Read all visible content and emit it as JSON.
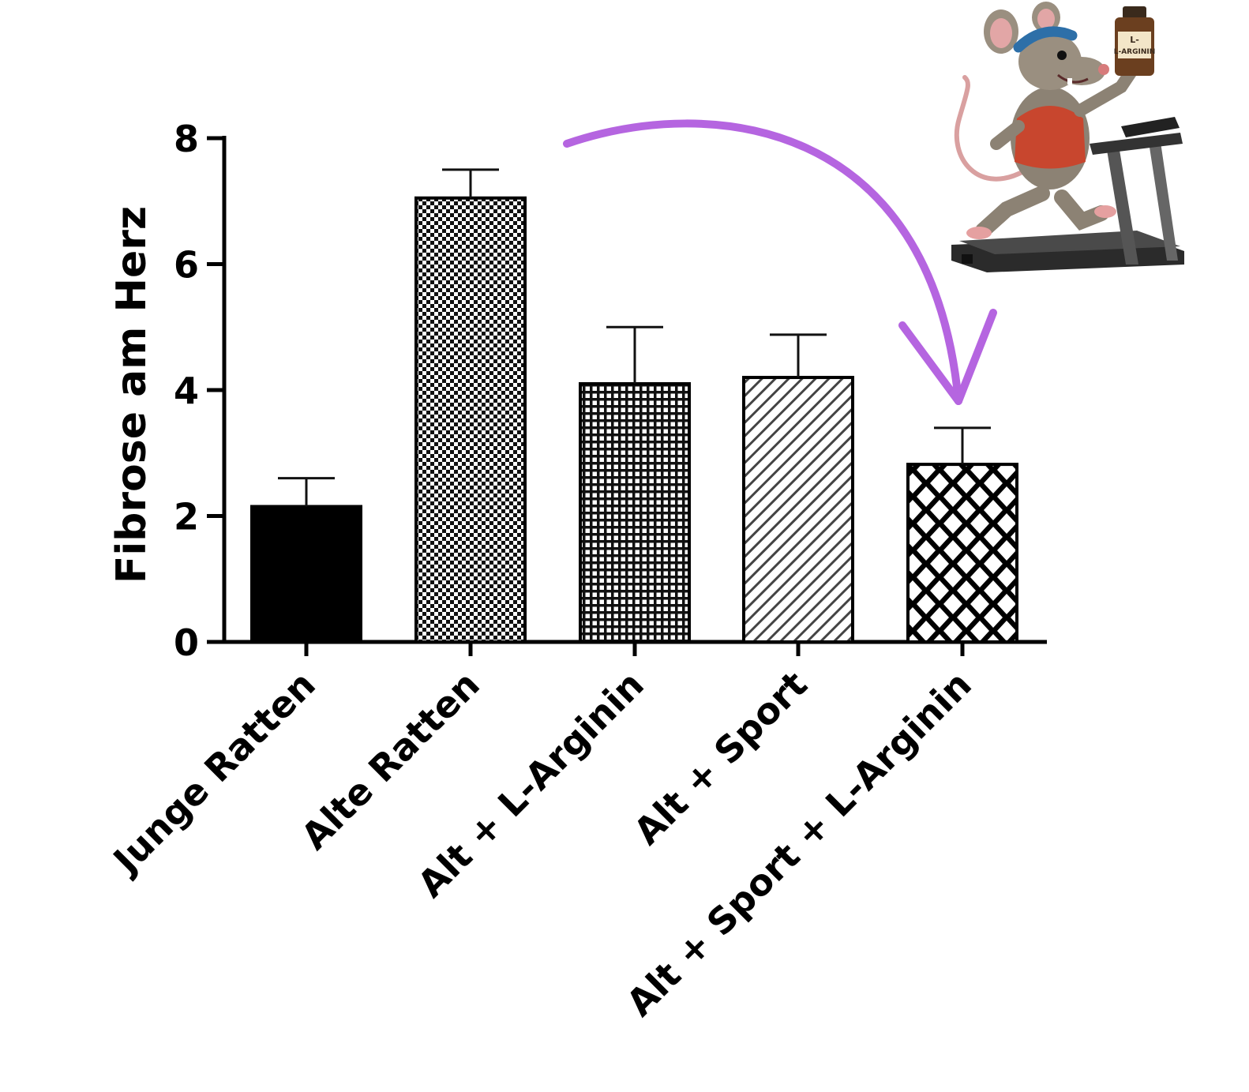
{
  "chart_data": {
    "type": "bar",
    "ylabel": "Fibrose am Herz",
    "ylim": [
      0,
      8
    ],
    "yticks": [
      0,
      2,
      4,
      6,
      8
    ],
    "grid": false,
    "categories": [
      "Junge Ratten",
      "Alte Ratten",
      "Alt + L-Arginin",
      "Alt + Sport",
      "Alt + Sport + L-Arginin"
    ],
    "values": [
      2.15,
      7.05,
      4.1,
      4.2,
      2.82
    ],
    "error_bars": [
      0.45,
      0.45,
      0.9,
      0.68,
      0.58
    ],
    "bar_patterns": [
      "solid-black",
      "fine-checker",
      "dense-grid",
      "diagonal-hatch",
      "diamond-lattice"
    ],
    "annotation": {
      "arrow": "curved arrow from 'Alte Ratten' to 'Alt + Sport + L-Arginin'",
      "arrow_color": "#b565e0"
    },
    "illustration": {
      "description_icon": "rat-on-treadmill-icon",
      "bottle_label": "L-ARGININ"
    }
  }
}
